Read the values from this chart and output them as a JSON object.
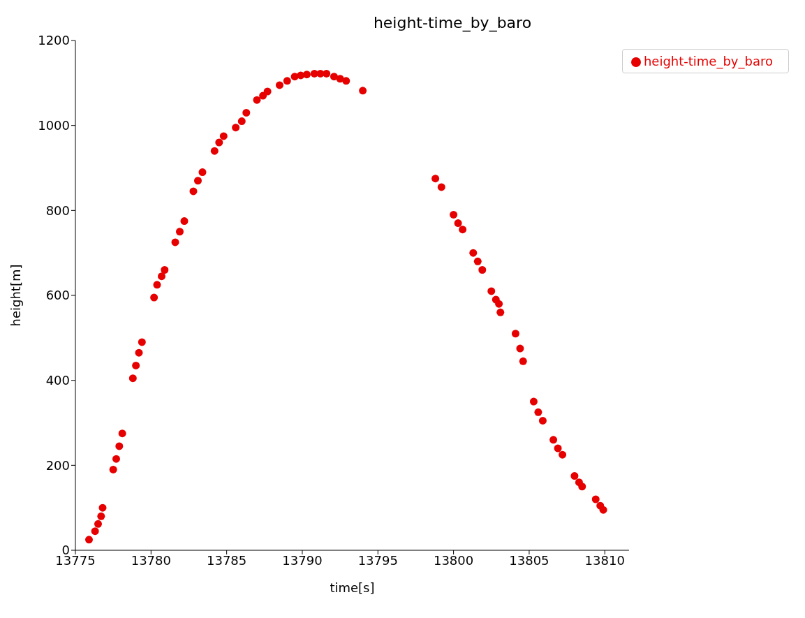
{
  "chart_data": {
    "type": "scatter",
    "title": "height-time_by_baro",
    "xlabel": "time[s]",
    "ylabel": "height[m]",
    "x": [
      13775.9,
      13776.3,
      13776.5,
      13776.7,
      13776.8,
      13777.5,
      13777.7,
      13777.9,
      13778.1,
      13778.8,
      13779.0,
      13779.2,
      13779.4,
      13780.2,
      13780.4,
      13780.7,
      13780.9,
      13781.6,
      13781.9,
      13782.2,
      13782.8,
      13783.1,
      13783.4,
      13784.2,
      13784.5,
      13784.8,
      13785.6,
      13786.0,
      13786.3,
      13787.0,
      13787.4,
      13787.7,
      13788.5,
      13789.0,
      13789.5,
      13789.9,
      13790.3,
      13790.8,
      13791.2,
      13791.6,
      13792.1,
      13792.5,
      13792.9,
      13794.0,
      13798.8,
      13799.2,
      13800.0,
      13800.3,
      13800.6,
      13801.3,
      13801.6,
      13801.9,
      13802.5,
      13802.8,
      13803.0,
      13803.1,
      13804.1,
      13804.4,
      13804.6,
      13805.3,
      13805.6,
      13805.9,
      13806.6,
      13806.9,
      13807.2,
      13808.0,
      13808.3,
      13808.5,
      13809.4,
      13809.7,
      13809.9
    ],
    "series": [
      {
        "name": "height-time_by_baro",
        "color": "#e60000",
        "values": [
          25,
          45,
          62,
          80,
          100,
          190,
          215,
          245,
          275,
          405,
          435,
          465,
          490,
          595,
          625,
          645,
          660,
          725,
          750,
          775,
          845,
          870,
          890,
          940,
          960,
          975,
          995,
          1010,
          1030,
          1060,
          1070,
          1080,
          1095,
          1105,
          1115,
          1118,
          1120,
          1122,
          1122,
          1122,
          1115,
          1110,
          1105,
          1082,
          875,
          855,
          790,
          770,
          755,
          700,
          680,
          660,
          610,
          590,
          580,
          560,
          510,
          475,
          445,
          350,
          325,
          305,
          260,
          240,
          225,
          175,
          160,
          150,
          120,
          105,
          95
        ]
      }
    ],
    "xlim": [
      13775,
      13811.6
    ],
    "xticks": [
      13775,
      13780,
      13785,
      13790,
      13795,
      13800,
      13805,
      13810
    ],
    "ylim": [
      0,
      1200
    ],
    "yticks": [
      0,
      200,
      400,
      600,
      800,
      1000,
      1200
    ],
    "grid": false,
    "legend": "top right",
    "marker": "circle"
  }
}
